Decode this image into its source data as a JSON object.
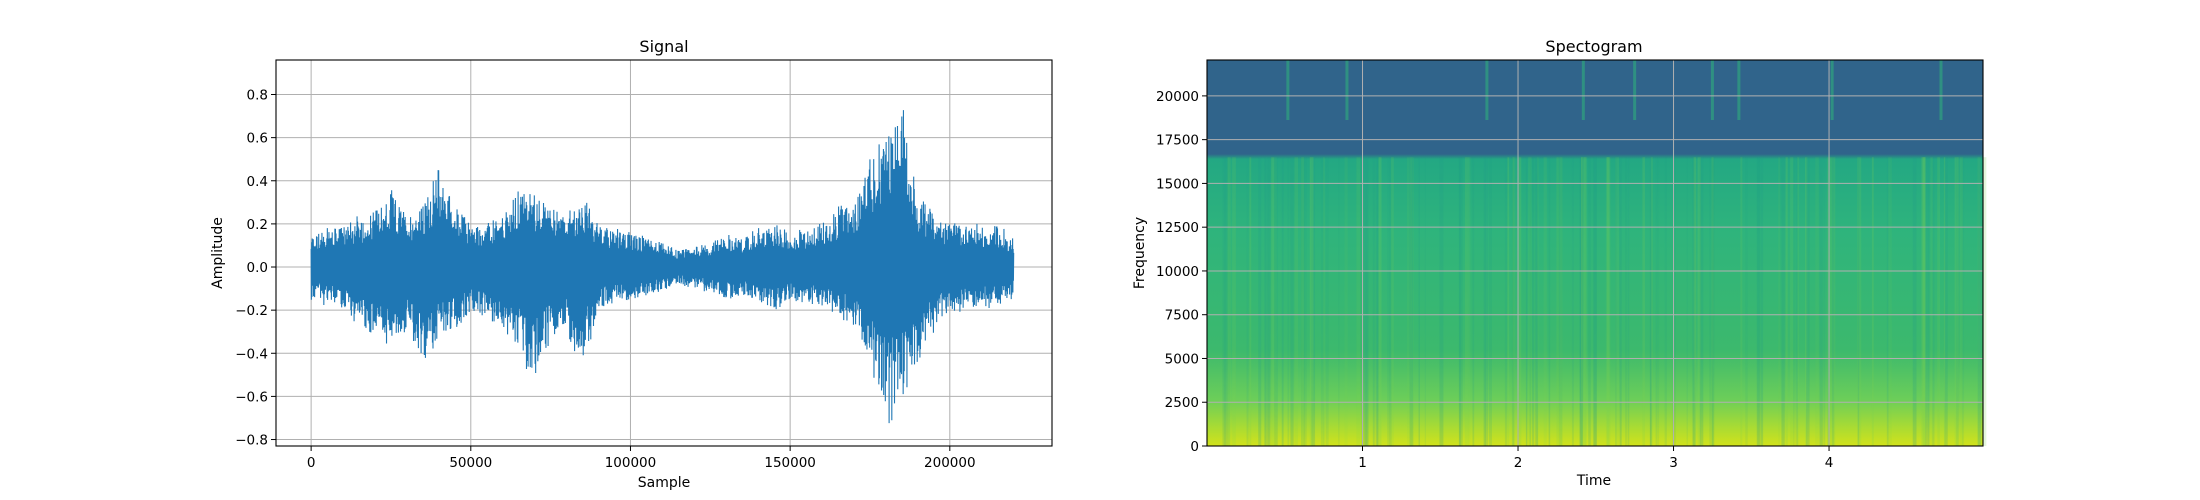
{
  "chart_data": [
    {
      "type": "line",
      "title": "Signal",
      "xlabel": "Sample",
      "ylabel": "Amplitude",
      "xlim": [
        -11000,
        232000
      ],
      "ylim": [
        -0.83,
        0.96
      ],
      "grid": true,
      "xticks": [
        0,
        50000,
        100000,
        150000,
        200000
      ],
      "xtick_labels": [
        "0",
        "50000",
        "100000",
        "150000",
        "200000"
      ],
      "yticks": [
        -0.8,
        -0.6,
        -0.4,
        -0.2,
        0.0,
        0.2,
        0.4,
        0.6,
        0.8
      ],
      "ytick_labels": [
        "−0.8",
        "−0.6",
        "−0.4",
        "−0.2",
        "0.0",
        "0.2",
        "0.4",
        "0.6",
        "0.8"
      ],
      "line_color": "#1f77b4",
      "series": [
        {
          "envelope_x": [
            0,
            5000,
            10000,
            15000,
            20000,
            25000,
            30000,
            35000,
            40000,
            45000,
            50000,
            55000,
            60000,
            65000,
            70000,
            75000,
            80000,
            85000,
            90000,
            95000,
            100000,
            105000,
            110000,
            115000,
            120000,
            125000,
            130000,
            135000,
            140000,
            145000,
            150000,
            155000,
            160000,
            165000,
            170000,
            175000,
            180000,
            185000,
            190000,
            195000,
            200000,
            205000,
            210000,
            215000,
            220000
          ],
          "envelope_upper": [
            0.16,
            0.18,
            0.2,
            0.24,
            0.28,
            0.36,
            0.26,
            0.3,
            0.5,
            0.3,
            0.22,
            0.2,
            0.24,
            0.38,
            0.36,
            0.3,
            0.26,
            0.36,
            0.2,
            0.18,
            0.16,
            0.14,
            0.12,
            0.08,
            0.1,
            0.12,
            0.16,
            0.14,
            0.18,
            0.2,
            0.16,
            0.18,
            0.22,
            0.28,
            0.3,
            0.5,
            0.62,
            0.86,
            0.36,
            0.26,
            0.22,
            0.2,
            0.2,
            0.2,
            0.14
          ],
          "envelope_lower": [
            -0.16,
            -0.18,
            -0.2,
            -0.3,
            -0.34,
            -0.36,
            -0.32,
            -0.5,
            -0.34,
            -0.32,
            -0.22,
            -0.26,
            -0.3,
            -0.4,
            -0.55,
            -0.36,
            -0.3,
            -0.48,
            -0.2,
            -0.18,
            -0.16,
            -0.14,
            -0.12,
            -0.08,
            -0.1,
            -0.12,
            -0.16,
            -0.14,
            -0.18,
            -0.2,
            -0.16,
            -0.18,
            -0.2,
            -0.26,
            -0.3,
            -0.5,
            -0.74,
            -0.66,
            -0.48,
            -0.3,
            -0.22,
            -0.2,
            -0.2,
            -0.2,
            -0.14
          ]
        }
      ]
    },
    {
      "type": "heatmap",
      "title": "Spectogram",
      "xlabel": "Time",
      "ylabel": "Frequency",
      "xlim": [
        0.0,
        4.99
      ],
      "ylim": [
        0,
        22050
      ],
      "grid": true,
      "xticks": [
        1,
        2,
        3,
        4
      ],
      "xtick_labels": [
        "1",
        "2",
        "3",
        "4"
      ],
      "yticks": [
        0,
        2500,
        5000,
        7500,
        10000,
        12500,
        15000,
        17500,
        20000
      ],
      "ytick_labels": [
        "0",
        "2500",
        "5000",
        "7500",
        "10000",
        "12500",
        "15000",
        "17500",
        "20000"
      ],
      "colormap": "viridis",
      "colors": {
        "low": "#30648b",
        "band": "#23a883",
        "mid": "#3cb96d",
        "high": "#d2e21b"
      },
      "cutoff_frequency": 16500,
      "bright_time_columns": [
        0.52,
        0.9,
        1.8,
        2.42,
        2.75,
        3.25,
        3.42,
        4.02,
        4.72
      ]
    }
  ]
}
